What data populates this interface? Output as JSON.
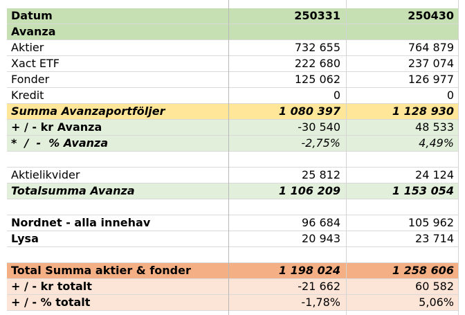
{
  "header": {
    "label": "Datum",
    "col1": "250331",
    "col2": "250430"
  },
  "sections": {
    "avanza_title": "Avanza"
  },
  "rows": {
    "aktier": {
      "label": "Aktier",
      "v1": "732 655",
      "v2": "764 879"
    },
    "xact": {
      "label": "Xact ETF",
      "v1": "222 680",
      "v2": "237 074"
    },
    "fonder": {
      "label": "Fonder",
      "v1": "125 062",
      "v2": "126 977"
    },
    "kredit": {
      "label": "Kredit",
      "v1": "0",
      "v2": "0"
    },
    "summa_avanza": {
      "label": "Summa Avanzaportföljer",
      "v1": "1 080 397",
      "v2": "1 128 930"
    },
    "kr_avanza": {
      "label": "+ / - kr Avanza",
      "v1": "-30 540",
      "v2": "48 533"
    },
    "pct_avanza": {
      "label": "*  /  -  % Avanza",
      "v1": "-2,75%",
      "v2": "4,49%"
    },
    "aktielikvider": {
      "label": "Aktielikvider",
      "v1": "25 812",
      "v2": "24 124"
    },
    "totalsumma_avanza": {
      "label": "Totalsumma Avanza",
      "v1": "1 106 209",
      "v2": "1 153 054"
    },
    "nordnet": {
      "label": "Nordnet - alla innehav",
      "v1": "96 684",
      "v2": "105 962"
    },
    "lysa": {
      "label": "Lysa",
      "v1": "20 943",
      "v2": "23 714"
    },
    "total_summa": {
      "label": "Total Summa aktier & fonder",
      "v1": "1 198 024",
      "v2": "1 258 606"
    },
    "kr_totalt": {
      "label": "+ / - kr totalt",
      "v1": "-21 662",
      "v2": "60 582"
    },
    "pct_totalt": {
      "label": "+ / - % totalt",
      "v1": "-1,78%",
      "v2": "5,06%"
    }
  },
  "colors": {
    "header_green": "#c6e0b4",
    "light_green": "#e2efda",
    "yellow": "#ffe699",
    "orange": "#f4b084",
    "peach": "#fce4d6"
  }
}
